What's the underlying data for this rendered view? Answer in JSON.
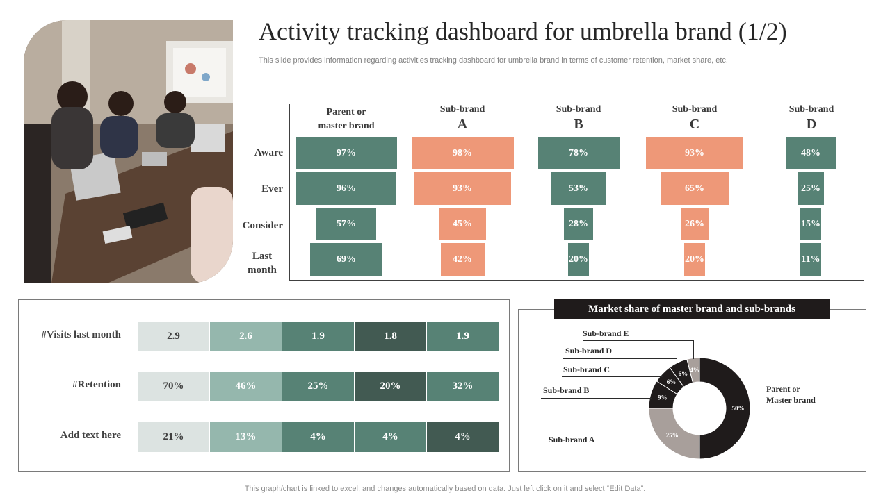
{
  "title": "Activity tracking dashboard for umbrella brand (1/2)",
  "subtitle": "This slide provides information regarding activities tracking dashboard for umbrella brand in terms of customer retention, market share, etc.",
  "footer": "This graph/chart is linked to excel,  and changes automatically based on data. Just left click on it and select “Edit Data”.",
  "photo": {
    "description_icon": "meeting-photo"
  },
  "colors": {
    "green": "#578275",
    "salmon": "#EE9878",
    "light": "#DCE3E1",
    "pale_green": "#95B7AD",
    "mid_green": "#578275",
    "dark_green": "#425A52",
    "black": "#1f1b1b",
    "grey": "#A89F9B"
  },
  "chart_data": [
    {
      "type": "bar",
      "categories": [
        "Aware",
        "Ever",
        "Consider",
        "Last month"
      ],
      "columns": [
        {
          "line1": "Parent or",
          "line2": "master brand"
        },
        {
          "line1": "Sub-brand",
          "line2": "A"
        },
        {
          "line1": "Sub-brand",
          "line2": "B"
        },
        {
          "line1": "Sub-brand",
          "line2": "C"
        },
        {
          "line1": "Sub-brand",
          "line2": "D"
        }
      ],
      "series": [
        {
          "values": [
            97,
            96,
            57,
            69
          ],
          "labels": [
            "97%",
            "96%",
            "57%",
            "69%"
          ],
          "color": "#578275"
        },
        {
          "values": [
            98,
            93,
            45,
            42
          ],
          "labels": [
            "98%",
            "93%",
            "45%",
            "42%"
          ],
          "color": "#EE9878"
        },
        {
          "values": [
            78,
            53,
            28,
            20
          ],
          "labels": [
            "78%",
            "53%",
            "28%",
            "20%"
          ],
          "color": "#578275"
        },
        {
          "values": [
            93,
            65,
            26,
            20
          ],
          "labels": [
            "93%",
            "65%",
            "26%",
            "20%"
          ],
          "color": "#EE9878"
        },
        {
          "values": [
            48,
            25,
            15,
            11
          ],
          "labels": [
            "48%",
            "25%",
            "15%",
            "11%"
          ],
          "color": "#578275"
        }
      ]
    },
    {
      "type": "table",
      "rows": [
        {
          "label": "#Visits last month",
          "values": [
            "2.9",
            "2.6",
            "1.9",
            "1.8",
            "1.9"
          ]
        },
        {
          "label": "#Retention",
          "values": [
            "70%",
            "46%",
            "25%",
            "20%",
            "32%"
          ]
        },
        {
          "label": "Add text here",
          "values": [
            "21%",
            "13%",
            "4%",
            "4%",
            "4%"
          ]
        }
      ],
      "row_colors": [
        [
          "#DCE3E1",
          "#95B7AD",
          "#578275",
          "#425A52",
          "#578275"
        ],
        [
          "#DCE3E1",
          "#95B7AD",
          "#578275",
          "#425A52",
          "#578275"
        ],
        [
          "#DCE3E1",
          "#95B7AD",
          "#578275",
          "#578275",
          "#425A52"
        ]
      ]
    },
    {
      "type": "pie",
      "title": "Market share of master brand  and sub-brands",
      "slices": [
        {
          "name": "Parent or Master brand",
          "value": 50,
          "label": "50%",
          "color": "#1f1b1b"
        },
        {
          "name": "Sub-brand  A",
          "value": 25,
          "label": "25%",
          "color": "#A89F9B"
        },
        {
          "name": "Sub-brand  B",
          "value": 9,
          "label": "9%",
          "color": "#1f1b1b"
        },
        {
          "name": "Sub-brand  C",
          "value": 6,
          "label": "6%",
          "color": "#1f1b1b"
        },
        {
          "name": "Sub-brand  D",
          "value": 6,
          "label": "6%",
          "color": "#1f1b1b"
        },
        {
          "name": "Sub-brand  E",
          "value": 4,
          "label": "4%",
          "color": "#A89F9B"
        }
      ],
      "donut": true
    }
  ],
  "pie_labels": {
    "parent_l1": "Parent or",
    "parent_l2": "Master brand",
    "a": "Sub-brand  A",
    "b": "Sub-brand  B",
    "c": "Sub-brand  C",
    "d": "Sub-brand  D",
    "e": "Sub-brand  E"
  }
}
